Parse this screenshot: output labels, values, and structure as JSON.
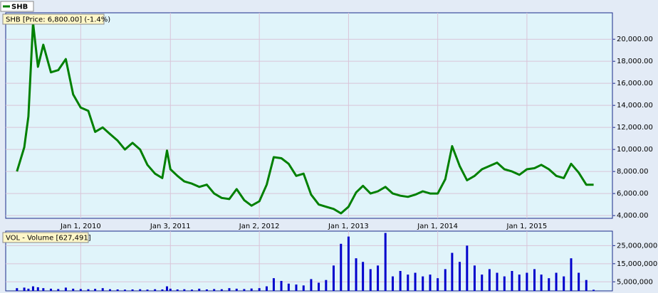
{
  "chart_data": [
    {
      "type": "line",
      "title": "SHB [Price: 6,800.00] (-1.4%)",
      "legend": "upper left",
      "x": [
        "2009-04-15",
        "2009-05-15",
        "2009-06-01",
        "2009-06-20",
        "2009-07-10",
        "2009-08-01",
        "2009-09-01",
        "2009-10-01",
        "2009-11-01",
        "2009-12-01",
        "2010-01-01",
        "2010-02-01",
        "2010-03-01",
        "2010-04-01",
        "2010-05-01",
        "2010-06-01",
        "2010-07-01",
        "2010-08-01",
        "2010-09-01",
        "2010-10-01",
        "2010-11-01",
        "2010-12-01",
        "2010-12-20",
        "2011-01-03",
        "2011-02-01",
        "2011-03-01",
        "2011-04-01",
        "2011-05-01",
        "2011-06-01",
        "2011-07-01",
        "2011-08-01",
        "2011-09-01",
        "2011-10-01",
        "2011-11-01",
        "2011-12-01",
        "2012-01-02",
        "2012-02-01",
        "2012-03-01",
        "2012-04-01",
        "2012-05-01",
        "2012-06-01",
        "2012-07-01",
        "2012-08-01",
        "2012-09-01",
        "2012-10-01",
        "2012-11-01",
        "2012-12-01",
        "2013-01-01",
        "2013-02-01",
        "2013-03-01",
        "2013-04-01",
        "2013-05-01",
        "2013-06-01",
        "2013-07-01",
        "2013-08-01",
        "2013-09-01",
        "2013-10-01",
        "2013-11-01",
        "2013-12-01",
        "2014-01-01",
        "2014-02-01",
        "2014-03-01",
        "2014-04-01",
        "2014-05-01",
        "2014-06-01",
        "2014-07-01",
        "2014-08-01",
        "2014-09-01",
        "2014-10-01",
        "2014-11-01",
        "2014-12-01",
        "2015-01-01",
        "2015-02-01",
        "2015-03-01",
        "2015-04-01",
        "2015-05-01",
        "2015-06-01",
        "2015-07-01",
        "2015-08-01",
        "2015-09-01",
        "2015-10-01"
      ],
      "series": [
        {
          "name": "SHB",
          "color": "#008000",
          "values": [
            8000,
            10200,
            13000,
            21500,
            17500,
            19500,
            17000,
            17200,
            18200,
            15000,
            13800,
            13500,
            11600,
            12000,
            11400,
            10800,
            10000,
            10600,
            10000,
            8600,
            7800,
            7400,
            9900,
            8200,
            7600,
            7100,
            6900,
            6600,
            6800,
            6000,
            5600,
            5500,
            6400,
            5400,
            4900,
            5300,
            6800,
            9300,
            9200,
            8700,
            7600,
            7800,
            5900,
            5000,
            4800,
            4600,
            4200,
            4800,
            6100,
            6700,
            6000,
            6200,
            6600,
            6000,
            5800,
            5700,
            5900,
            6200,
            6000,
            6000,
            7300,
            10300,
            8500,
            7200,
            7600,
            8200,
            8500,
            8800,
            8200,
            8000,
            7700,
            8200,
            8300,
            8600,
            8200,
            7600,
            7400,
            8700,
            7900,
            6800,
            6800
          ]
        }
      ],
      "xlim": [
        "2009-02-28",
        "2015-12-17"
      ],
      "xticks": [
        {
          "value": "2010-01-01",
          "label": "Jan 1, 2010"
        },
        {
          "value": "2011-01-03",
          "label": "Jan 3, 2011"
        },
        {
          "value": "2012-01-02",
          "label": "Jan 2, 2012"
        },
        {
          "value": "2013-01-01",
          "label": "Jan 1, 2013"
        },
        {
          "value": "2014-01-01",
          "label": "Jan 1, 2014"
        },
        {
          "value": "2015-01-01",
          "label": "Jan 1, 2015"
        }
      ],
      "ylim": [
        3750,
        22400
      ],
      "yticks": [
        {
          "value": 4000,
          "label": "4,000.00"
        },
        {
          "value": 6000,
          "label": "6,000.00"
        },
        {
          "value": 8000,
          "label": "8,000.00"
        },
        {
          "value": 10000,
          "label": "10,000.00"
        },
        {
          "value": 12000,
          "label": "12,000.00"
        },
        {
          "value": 14000,
          "label": "14,000.00"
        },
        {
          "value": 16000,
          "label": "16,000.00"
        },
        {
          "value": 18000,
          "label": "18,000.00"
        },
        {
          "value": 20000,
          "label": "20,000.00"
        }
      ],
      "grid": true
    },
    {
      "type": "bar",
      "title": "VOL - Volume [627,491]",
      "x": [
        "2009-04-15",
        "2009-05-15",
        "2009-06-01",
        "2009-06-20",
        "2009-07-10",
        "2009-08-01",
        "2009-09-01",
        "2009-10-01",
        "2009-11-01",
        "2009-12-01",
        "2010-01-01",
        "2010-02-01",
        "2010-03-01",
        "2010-04-01",
        "2010-05-01",
        "2010-06-01",
        "2010-07-01",
        "2010-08-01",
        "2010-09-01",
        "2010-10-01",
        "2010-11-01",
        "2010-12-01",
        "2010-12-20",
        "2011-01-03",
        "2011-02-01",
        "2011-03-01",
        "2011-04-01",
        "2011-05-01",
        "2011-06-01",
        "2011-07-01",
        "2011-08-01",
        "2011-09-01",
        "2011-10-01",
        "2011-11-01",
        "2011-12-01",
        "2012-01-02",
        "2012-02-01",
        "2012-03-01",
        "2012-04-01",
        "2012-05-01",
        "2012-06-01",
        "2012-07-01",
        "2012-08-01",
        "2012-09-01",
        "2012-10-01",
        "2012-11-01",
        "2012-12-01",
        "2013-01-01",
        "2013-02-01",
        "2013-03-01",
        "2013-04-01",
        "2013-05-01",
        "2013-06-01",
        "2013-07-01",
        "2013-08-01",
        "2013-09-01",
        "2013-10-01",
        "2013-11-01",
        "2013-12-01",
        "2014-01-01",
        "2014-02-01",
        "2014-03-01",
        "2014-04-01",
        "2014-05-01",
        "2014-06-01",
        "2014-07-01",
        "2014-08-01",
        "2014-09-01",
        "2014-10-01",
        "2014-11-01",
        "2014-12-01",
        "2015-01-01",
        "2015-02-01",
        "2015-03-01",
        "2015-04-01",
        "2015-05-01",
        "2015-06-01",
        "2015-07-01",
        "2015-08-01",
        "2015-09-01",
        "2015-10-01"
      ],
      "color": "#0000cc",
      "values": [
        1500000,
        1800000,
        1200000,
        2500000,
        2000000,
        1500000,
        1200000,
        1000000,
        1800000,
        1200000,
        1000000,
        900000,
        1100000,
        1500000,
        900000,
        800000,
        700000,
        800000,
        900000,
        700000,
        900000,
        800000,
        2500000,
        1200000,
        800000,
        900000,
        700000,
        1200000,
        800000,
        1000000,
        900000,
        1500000,
        1200000,
        1000000,
        1300000,
        1500000,
        2500000,
        7000000,
        5500000,
        4000000,
        3500000,
        3000000,
        6500000,
        4500000,
        6000000,
        14000000,
        26000000,
        30000000,
        18000000,
        16000000,
        12000000,
        14000000,
        32000000,
        8000000,
        11000000,
        9000000,
        10000000,
        8000000,
        9000000,
        7000000,
        12000000,
        21000000,
        16000000,
        25000000,
        14000000,
        9000000,
        12000000,
        10000000,
        8000000,
        11000000,
        9000000,
        10000000,
        12000000,
        9000000,
        7000000,
        10000000,
        8000000,
        18000000,
        10000000,
        6000000,
        627491
      ],
      "xlim": [
        "2009-02-28",
        "2015-12-17"
      ],
      "ylim": [
        0,
        33000000
      ],
      "yticks": [
        {
          "value": 5000000,
          "label": "5,000,000"
        },
        {
          "value": 15000000,
          "label": "15,000,000"
        },
        {
          "value": 25000000,
          "label": "25,000,000"
        }
      ],
      "grid": true
    }
  ]
}
